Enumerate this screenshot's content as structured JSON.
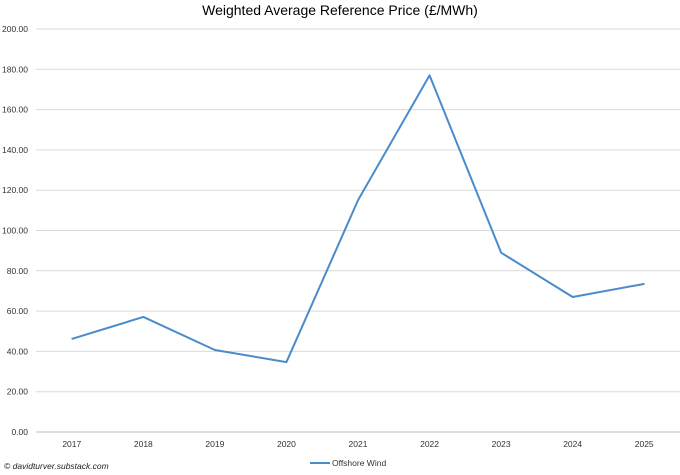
{
  "chart_data": {
    "type": "line",
    "title": "Weighted Average Reference Price (£/MWh)",
    "categories": [
      "2017",
      "2018",
      "2019",
      "2020",
      "2021",
      "2022",
      "2023",
      "2024",
      "2025"
    ],
    "series": [
      {
        "name": "Offshore Wind",
        "values": [
          46.2,
          57.1,
          40.7,
          34.7,
          115.0,
          177.0,
          89.0,
          67.0,
          73.5
        ],
        "color": "#4a8ccb"
      }
    ],
    "ylim": [
      0,
      200
    ],
    "yticks": [
      "0.00",
      "20.00",
      "40.00",
      "60.00",
      "80.00",
      "100.00",
      "120.00",
      "140.00",
      "160.00",
      "180.00",
      "200.00"
    ],
    "grid": true,
    "legend": "bottom"
  },
  "credit": "© davidturver.substack.com"
}
